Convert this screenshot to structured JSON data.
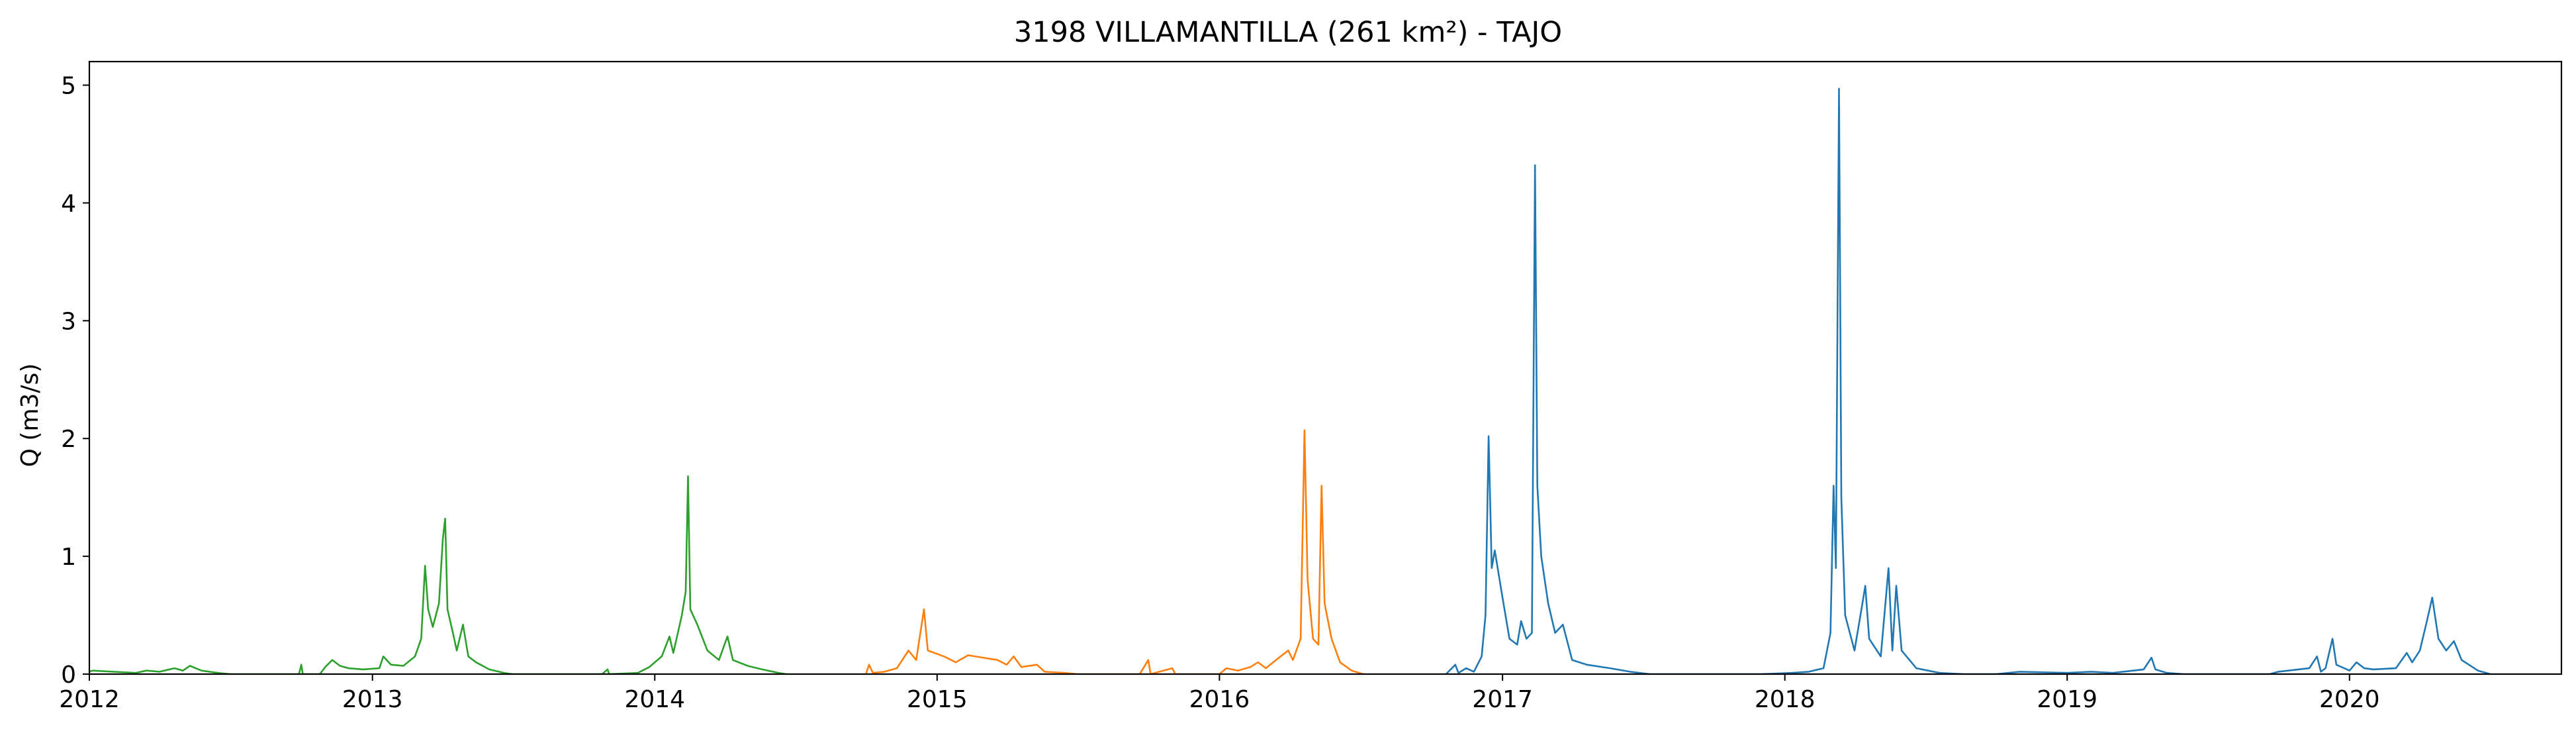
{
  "chart_data": {
    "type": "line",
    "title": "3198 VILLAMANTILLA (261 km²) - TAJO",
    "xlabel": "",
    "ylabel": "Q (m3/s)",
    "xlim": [
      "2012-01-01",
      "2020-10-01"
    ],
    "ylim": [
      0,
      5.2
    ],
    "x_ticks": [
      "2012",
      "2013",
      "2014",
      "2015",
      "2016",
      "2017",
      "2018",
      "2019",
      "2020"
    ],
    "y_ticks": [
      "0",
      "1",
      "2",
      "3",
      "4",
      "5"
    ],
    "grid": false,
    "legend": "none",
    "series": [
      {
        "color": "#2ca02c",
        "points": [
          [
            "2012-01-01",
            0.02
          ],
          [
            "2012-01-05",
            0.03
          ],
          [
            "2012-02-01",
            0.02
          ],
          [
            "2012-03-01",
            0.01
          ],
          [
            "2012-03-15",
            0.03
          ],
          [
            "2012-04-01",
            0.02
          ],
          [
            "2012-04-20",
            0.05
          ],
          [
            "2012-05-01",
            0.03
          ],
          [
            "2012-05-10",
            0.07
          ],
          [
            "2012-05-25",
            0.03
          ],
          [
            "2012-06-15",
            0.01
          ],
          [
            "2012-07-01",
            0.0
          ],
          [
            "2012-09-28",
            0.0
          ],
          [
            "2012-10-01",
            0.08
          ],
          [
            "2012-10-03",
            0.0
          ],
          [
            "2012-10-25",
            0.0
          ],
          [
            "2012-11-01",
            0.06
          ],
          [
            "2012-11-10",
            0.12
          ],
          [
            "2012-11-20",
            0.07
          ],
          [
            "2012-12-01",
            0.05
          ],
          [
            "2012-12-20",
            0.04
          ],
          [
            "2013-01-10",
            0.05
          ],
          [
            "2013-01-15",
            0.15
          ],
          [
            "2013-01-25",
            0.08
          ],
          [
            "2013-02-10",
            0.07
          ],
          [
            "2013-02-25",
            0.15
          ],
          [
            "2013-03-05",
            0.3
          ],
          [
            "2013-03-10",
            0.92
          ],
          [
            "2013-03-14",
            0.55
          ],
          [
            "2013-03-20",
            0.4
          ],
          [
            "2013-03-28",
            0.6
          ],
          [
            "2013-04-02",
            1.15
          ],
          [
            "2013-04-05",
            1.32
          ],
          [
            "2013-04-08",
            0.55
          ],
          [
            "2013-04-15",
            0.35
          ],
          [
            "2013-04-20",
            0.2
          ],
          [
            "2013-04-28",
            0.42
          ],
          [
            "2013-05-05",
            0.15
          ],
          [
            "2013-05-15",
            0.1
          ],
          [
            "2013-06-01",
            0.04
          ],
          [
            "2013-06-20",
            0.01
          ],
          [
            "2013-07-01",
            0.0
          ],
          [
            "2013-10-25",
            0.0
          ],
          [
            "2013-11-01",
            0.04
          ],
          [
            "2013-11-03",
            0.0
          ],
          [
            "2013-12-10",
            0.01
          ],
          [
            "2013-12-25",
            0.06
          ],
          [
            "2014-01-10",
            0.15
          ],
          [
            "2014-01-20",
            0.32
          ],
          [
            "2014-01-25",
            0.18
          ],
          [
            "2014-02-05",
            0.5
          ],
          [
            "2014-02-10",
            0.7
          ],
          [
            "2014-02-13",
            1.68
          ],
          [
            "2014-02-16",
            0.55
          ],
          [
            "2014-02-25",
            0.42
          ],
          [
            "2014-03-10",
            0.2
          ],
          [
            "2014-03-25",
            0.12
          ],
          [
            "2014-04-05",
            0.32
          ],
          [
            "2014-04-12",
            0.12
          ],
          [
            "2014-05-01",
            0.07
          ],
          [
            "2014-05-20",
            0.04
          ],
          [
            "2014-06-10",
            0.01
          ],
          [
            "2014-06-20",
            0.0
          ]
        ]
      },
      {
        "color": "#ff7f0e",
        "points": [
          [
            "2014-10-01",
            0.0
          ],
          [
            "2014-10-05",
            0.08
          ],
          [
            "2014-10-10",
            0.01
          ],
          [
            "2014-10-25",
            0.02
          ],
          [
            "2014-11-10",
            0.05
          ],
          [
            "2014-11-25",
            0.2
          ],
          [
            "2014-12-05",
            0.12
          ],
          [
            "2014-12-15",
            0.55
          ],
          [
            "2014-12-20",
            0.2
          ],
          [
            "2015-01-10",
            0.15
          ],
          [
            "2015-01-25",
            0.1
          ],
          [
            "2015-02-10",
            0.16
          ],
          [
            "2015-03-01",
            0.14
          ],
          [
            "2015-03-20",
            0.12
          ],
          [
            "2015-04-01",
            0.08
          ],
          [
            "2015-04-10",
            0.15
          ],
          [
            "2015-04-20",
            0.06
          ],
          [
            "2015-05-10",
            0.08
          ],
          [
            "2015-05-20",
            0.02
          ],
          [
            "2015-06-15",
            0.01
          ],
          [
            "2015-07-01",
            0.0
          ],
          [
            "2015-09-20",
            0.0
          ],
          [
            "2015-10-01",
            0.12
          ],
          [
            "2015-10-04",
            0.0
          ],
          [
            "2015-11-01",
            0.05
          ],
          [
            "2015-11-05",
            0.0
          ],
          [
            "2016-01-01",
            0.0
          ],
          [
            "2016-01-10",
            0.05
          ],
          [
            "2016-01-25",
            0.03
          ],
          [
            "2016-02-10",
            0.06
          ],
          [
            "2016-02-20",
            0.1
          ],
          [
            "2016-03-01",
            0.05
          ],
          [
            "2016-03-20",
            0.15
          ],
          [
            "2016-03-30",
            0.2
          ],
          [
            "2016-04-05",
            0.12
          ],
          [
            "2016-04-15",
            0.3
          ],
          [
            "2016-04-20",
            2.07
          ],
          [
            "2016-04-24",
            0.8
          ],
          [
            "2016-05-01",
            0.3
          ],
          [
            "2016-05-08",
            0.25
          ],
          [
            "2016-05-12",
            1.6
          ],
          [
            "2016-05-16",
            0.6
          ],
          [
            "2016-05-25",
            0.3
          ],
          [
            "2016-06-05",
            0.1
          ],
          [
            "2016-06-20",
            0.03
          ],
          [
            "2016-07-05",
            0.0
          ]
        ]
      },
      {
        "color": "#1f77b4",
        "points": [
          [
            "2016-10-20",
            0.0
          ],
          [
            "2016-11-01",
            0.08
          ],
          [
            "2016-11-05",
            0.01
          ],
          [
            "2016-11-15",
            0.05
          ],
          [
            "2016-11-25",
            0.02
          ],
          [
            "2016-12-05",
            0.15
          ],
          [
            "2016-12-10",
            0.5
          ],
          [
            "2016-12-14",
            2.02
          ],
          [
            "2016-12-18",
            0.9
          ],
          [
            "2016-12-22",
            1.05
          ],
          [
            "2017-01-01",
            0.65
          ],
          [
            "2017-01-10",
            0.3
          ],
          [
            "2017-01-20",
            0.25
          ],
          [
            "2017-01-25",
            0.45
          ],
          [
            "2017-02-01",
            0.3
          ],
          [
            "2017-02-08",
            0.35
          ],
          [
            "2017-02-12",
            4.32
          ],
          [
            "2017-02-15",
            1.6
          ],
          [
            "2017-02-20",
            1.0
          ],
          [
            "2017-03-01",
            0.6
          ],
          [
            "2017-03-10",
            0.35
          ],
          [
            "2017-03-20",
            0.42
          ],
          [
            "2017-04-01",
            0.12
          ],
          [
            "2017-04-20",
            0.08
          ],
          [
            "2017-05-20",
            0.05
          ],
          [
            "2017-06-15",
            0.02
          ],
          [
            "2017-07-10",
            0.0
          ],
          [
            "2017-10-01",
            0.0
          ],
          [
            "2017-12-01",
            0.0
          ],
          [
            "2018-01-10",
            0.01
          ],
          [
            "2018-02-01",
            0.02
          ],
          [
            "2018-02-20",
            0.05
          ],
          [
            "2018-03-01",
            0.35
          ],
          [
            "2018-03-05",
            1.6
          ],
          [
            "2018-03-08",
            0.9
          ],
          [
            "2018-03-12",
            4.97
          ],
          [
            "2018-03-15",
            1.5
          ],
          [
            "2018-03-20",
            0.5
          ],
          [
            "2018-04-01",
            0.2
          ],
          [
            "2018-04-10",
            0.55
          ],
          [
            "2018-04-15",
            0.75
          ],
          [
            "2018-04-20",
            0.3
          ],
          [
            "2018-05-05",
            0.15
          ],
          [
            "2018-05-15",
            0.9
          ],
          [
            "2018-05-20",
            0.2
          ],
          [
            "2018-05-25",
            0.75
          ],
          [
            "2018-06-01",
            0.2
          ],
          [
            "2018-06-20",
            0.05
          ],
          [
            "2018-07-20",
            0.01
          ],
          [
            "2018-08-20",
            0.0
          ],
          [
            "2018-10-01",
            0.0
          ],
          [
            "2018-11-01",
            0.02
          ],
          [
            "2019-01-01",
            0.01
          ],
          [
            "2019-02-01",
            0.02
          ],
          [
            "2019-03-01",
            0.01
          ],
          [
            "2019-04-10",
            0.04
          ],
          [
            "2019-04-20",
            0.14
          ],
          [
            "2019-04-25",
            0.04
          ],
          [
            "2019-05-10",
            0.01
          ],
          [
            "2019-06-01",
            0.0
          ],
          [
            "2019-09-20",
            0.0
          ],
          [
            "2019-10-01",
            0.02
          ],
          [
            "2019-11-10",
            0.05
          ],
          [
            "2019-11-20",
            0.15
          ],
          [
            "2019-11-25",
            0.02
          ],
          [
            "2019-12-01",
            0.05
          ],
          [
            "2019-12-10",
            0.3
          ],
          [
            "2019-12-15",
            0.08
          ],
          [
            "2020-01-01",
            0.03
          ],
          [
            "2020-01-10",
            0.1
          ],
          [
            "2020-01-20",
            0.05
          ],
          [
            "2020-02-01",
            0.04
          ],
          [
            "2020-03-01",
            0.05
          ],
          [
            "2020-03-15",
            0.18
          ],
          [
            "2020-03-22",
            0.1
          ],
          [
            "2020-04-01",
            0.2
          ],
          [
            "2020-04-10",
            0.45
          ],
          [
            "2020-04-17",
            0.65
          ],
          [
            "2020-04-25",
            0.3
          ],
          [
            "2020-05-05",
            0.2
          ],
          [
            "2020-05-15",
            0.28
          ],
          [
            "2020-05-25",
            0.12
          ],
          [
            "2020-06-15",
            0.03
          ],
          [
            "2020-07-01",
            0.0
          ]
        ]
      }
    ]
  }
}
